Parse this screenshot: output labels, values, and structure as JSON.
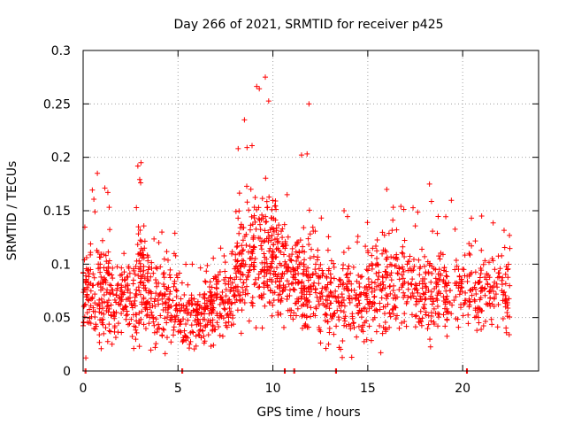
{
  "chart_data": {
    "type": "scatter",
    "title": "Day 266 of 2021, SRMTID for receiver p425",
    "xlabel": "GPS time / hours",
    "ylabel": "SRMTID / TECUs",
    "xlim": [
      0,
      24
    ],
    "ylim": [
      0,
      0.3
    ],
    "xticks": [
      0,
      5,
      10,
      15,
      20
    ],
    "xtick_labels": [
      "0",
      "5",
      "10",
      "15",
      "20"
    ],
    "yticks": [
      0,
      0.05,
      0.1,
      0.15,
      0.2,
      0.25,
      0.3
    ],
    "ytick_labels": [
      "0",
      "0.05",
      "0.1",
      "0.15",
      "0.2",
      "0.25",
      "0.3"
    ],
    "grid": true,
    "marker": "plus",
    "color": "#ff0000",
    "series": [
      {
        "name": "SRMTID",
        "segments": [
          {
            "x0": 0.0,
            "x1": 1.5,
            "base": 0.075,
            "spread": 0.05,
            "max": 0.185,
            "count": 160
          },
          {
            "x0": 1.5,
            "x1": 2.8,
            "base": 0.065,
            "spread": 0.04,
            "max": 0.11,
            "count": 100
          },
          {
            "x0": 2.8,
            "x1": 3.3,
            "base": 0.08,
            "spread": 0.05,
            "max": 0.195,
            "count": 70
          },
          {
            "x0": 3.3,
            "x1": 5.0,
            "base": 0.065,
            "spread": 0.045,
            "max": 0.13,
            "count": 140
          },
          {
            "x0": 5.0,
            "x1": 6.5,
            "base": 0.05,
            "spread": 0.03,
            "max": 0.1,
            "count": 120
          },
          {
            "x0": 6.5,
            "x1": 8.0,
            "base": 0.065,
            "spread": 0.04,
            "max": 0.115,
            "count": 130
          },
          {
            "x0": 8.0,
            "x1": 9.0,
            "base": 0.1,
            "spread": 0.06,
            "max": 0.235,
            "count": 110
          },
          {
            "x0": 9.0,
            "x1": 10.2,
            "base": 0.11,
            "spread": 0.07,
            "max": 0.275,
            "count": 140
          },
          {
            "x0": 10.2,
            "x1": 11.3,
            "base": 0.085,
            "spread": 0.05,
            "max": 0.165,
            "count": 110
          },
          {
            "x0": 11.3,
            "x1": 12.5,
            "base": 0.08,
            "spread": 0.05,
            "max": 0.25,
            "count": 120
          },
          {
            "x0": 12.5,
            "x1": 15.0,
            "base": 0.065,
            "spread": 0.045,
            "max": 0.15,
            "count": 190
          },
          {
            "x0": 15.0,
            "x1": 17.0,
            "base": 0.08,
            "spread": 0.05,
            "max": 0.17,
            "count": 160
          },
          {
            "x0": 17.0,
            "x1": 19.5,
            "base": 0.075,
            "spread": 0.045,
            "max": 0.175,
            "count": 180
          },
          {
            "x0": 19.5,
            "x1": 22.5,
            "base": 0.075,
            "spread": 0.04,
            "max": 0.145,
            "count": 190
          }
        ],
        "zero_points": [
          0.1,
          5.2,
          10.6,
          11.1,
          13.3,
          20.2
        ]
      }
    ]
  }
}
